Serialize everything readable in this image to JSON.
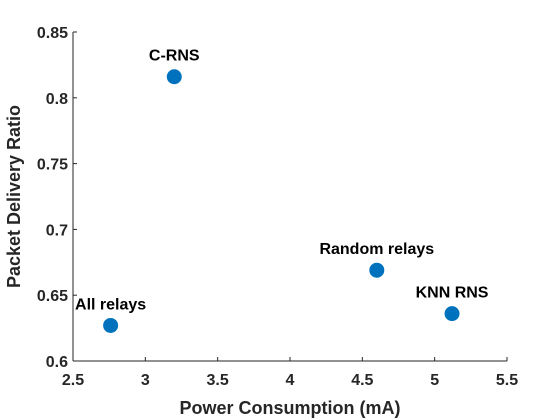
{
  "chart_data": {
    "type": "scatter",
    "title": "",
    "xlabel": "Power Consumption (mA)",
    "ylabel": "Packet Delivery Ratio",
    "xlim": [
      2.5,
      5.5
    ],
    "ylim": [
      0.6,
      0.85
    ],
    "xticks": [
      2.5,
      3,
      3.5,
      4,
      4.5,
      5,
      5.5
    ],
    "xtick_labels": [
      "2.5",
      "3",
      "3.5",
      "4",
      "4.5",
      "5",
      "5.5"
    ],
    "yticks": [
      0.6,
      0.65,
      0.7,
      0.75,
      0.8,
      0.85
    ],
    "ytick_labels": [
      "0.6",
      "0.65",
      "0.7",
      "0.75",
      "0.8",
      "0.85"
    ],
    "grid": false,
    "marker_color": "#0072BD",
    "points": [
      {
        "label": "C-RNS",
        "x": 3.2,
        "y": 0.816
      },
      {
        "label": "Random relays",
        "x": 4.6,
        "y": 0.669
      },
      {
        "label": "KNN RNS",
        "x": 5.12,
        "y": 0.636
      },
      {
        "label": "All relays",
        "x": 2.76,
        "y": 0.627
      }
    ]
  }
}
